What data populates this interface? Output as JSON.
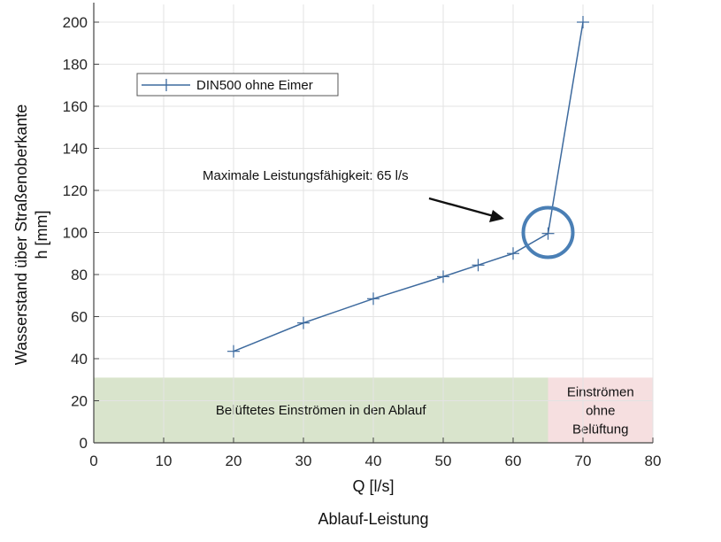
{
  "chart_data": {
    "type": "line",
    "title": "",
    "xlabel": "Q [l/s]",
    "xlabel_secondary": "Ablauf-Leistung",
    "ylabel_line1": "Wasserstand über Straßenoberkante",
    "ylabel_line2": "h [mm]",
    "xlim": [
      0,
      80
    ],
    "ylim": [
      0,
      200
    ],
    "xticks": [
      0,
      10,
      20,
      30,
      40,
      50,
      60,
      70,
      80
    ],
    "yticks": [
      0,
      20,
      40,
      60,
      80,
      100,
      120,
      140,
      160,
      180,
      200
    ],
    "grid": true,
    "legend_position": "upper left",
    "series": [
      {
        "name": "DIN500 ohne Eimer",
        "color": "#3d6a9e",
        "marker": "+",
        "x": [
          20,
          30,
          40,
          50,
          55,
          60,
          65,
          70
        ],
        "y": [
          43.5,
          57,
          68.5,
          79,
          84.5,
          90,
          99.5,
          200
        ]
      }
    ],
    "regions": [
      {
        "label": "Belüftetes Einströmen in den Ablauf",
        "x_range": [
          0,
          65
        ],
        "y_range": [
          0,
          31
        ],
        "color": "#d9e4cc"
      },
      {
        "label_lines": [
          "Einströmen",
          "ohne",
          "Belüftung"
        ],
        "x_range": [
          65,
          80
        ],
        "y_range": [
          0,
          31
        ],
        "color": "#f6dfe0"
      }
    ],
    "annotations": [
      {
        "text": "Maximale Leistungsfähigkeit: 65 l/s",
        "arrow_to": [
          60,
          108
        ]
      },
      {
        "type": "circle",
        "center": [
          65,
          100
        ],
        "color": "#4a7fb5"
      }
    ]
  }
}
